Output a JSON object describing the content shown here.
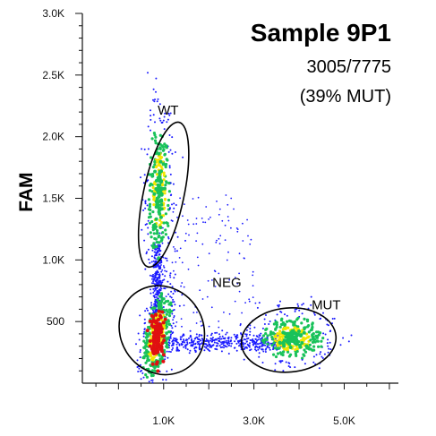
{
  "chart_data": {
    "type": "scatter",
    "title": "Sample 9P1",
    "subtitle_lines": [
      "3005/7775",
      "(39% MUT)"
    ],
    "xlabel": "",
    "ylabel": "FAM",
    "xlim": [
      -0.8,
      6.2
    ],
    "ylim": [
      0,
      3.0
    ],
    "x_ticks": [
      {
        "value": 1.0,
        "label": "1.0K"
      },
      {
        "value": 3.0,
        "label": "3.0K"
      },
      {
        "value": 5.0,
        "label": "5.0K"
      }
    ],
    "y_ticks": [
      {
        "value": 0.5,
        "label": "500"
      },
      {
        "value": 1.0,
        "label": "1.0K"
      },
      {
        "value": 1.5,
        "label": "1.5K"
      },
      {
        "value": 2.0,
        "label": "2.0K"
      },
      {
        "value": 2.5,
        "label": "2.5K"
      },
      {
        "value": 3.0,
        "label": "3.0K"
      }
    ],
    "populations": [
      {
        "name": "WT",
        "center": [
          0.9,
          1.55
        ],
        "spread": [
          0.07,
          0.16
        ],
        "count": 320,
        "density": "high"
      },
      {
        "name": "NEG",
        "center": [
          0.85,
          0.38
        ],
        "spread": [
          0.1,
          0.12
        ],
        "count": 420,
        "density": "very-high"
      },
      {
        "name": "MUT",
        "center": [
          3.85,
          0.36
        ],
        "spread": [
          0.2,
          0.05
        ],
        "count": 360,
        "density": "high"
      }
    ],
    "gates": [
      {
        "name": "WT",
        "label": "WT",
        "center": [
          1.0,
          1.53
        ],
        "radii": [
          0.45,
          0.6
        ],
        "rotation_deg": 12
      },
      {
        "name": "NEG",
        "label": "NEG",
        "center": [
          0.96,
          0.43
        ],
        "radii": [
          0.92,
          0.37
        ],
        "rotation_deg": -32
      },
      {
        "name": "MUT",
        "label": "MUT",
        "center": [
          3.77,
          0.35
        ],
        "radii": [
          1.05,
          0.26
        ],
        "rotation_deg": -5
      }
    ],
    "gate_label_positions": [
      {
        "name": "WT",
        "at": [
          1.1,
          2.18
        ]
      },
      {
        "name": "NEG",
        "at": [
          2.4,
          0.78
        ]
      },
      {
        "name": "MUT",
        "at": [
          4.6,
          0.6
        ]
      }
    ],
    "density_colors": {
      "low": "#1a1aff",
      "mid": "#19c25a",
      "high": "#f2e600",
      "peak": "#e01010"
    },
    "grid": false,
    "legend": "none"
  }
}
